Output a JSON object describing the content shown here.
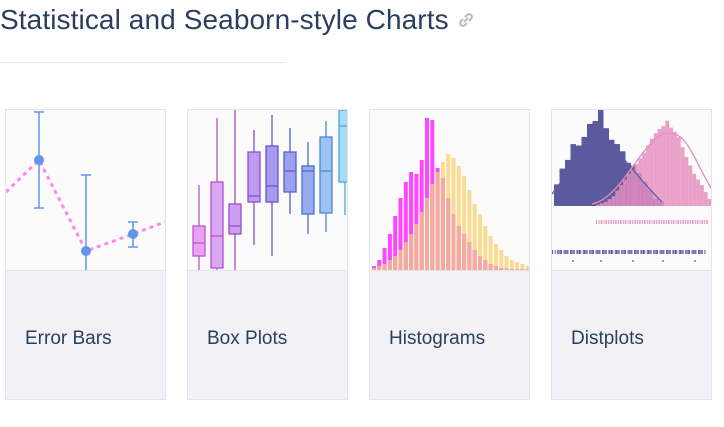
{
  "header": {
    "title": "Statistical and Seaborn-style Charts",
    "link_icon": "link-icon"
  },
  "cards": [
    {
      "label": "Error Bars",
      "thumbnail": "error-bars-thumbnail"
    },
    {
      "label": "Box Plots",
      "thumbnail": "box-plots-thumbnail"
    },
    {
      "label": "Histograms",
      "thumbnail": "histograms-thumbnail"
    },
    {
      "label": "Distplots",
      "thumbnail": "distplots-thumbnail"
    }
  ],
  "colors": {
    "title": "#2a3f5f",
    "card_footer": "#f2f2f6",
    "card_border": "#e2e5ec",
    "error_line": "#ff88ee",
    "error_markers": "#6495ed",
    "hist_magenta": "#ff33ff",
    "hist_yellow": "#f5d98a",
    "dist_purple": "#5c5a9e",
    "dist_pink": "#e58fbf"
  }
}
